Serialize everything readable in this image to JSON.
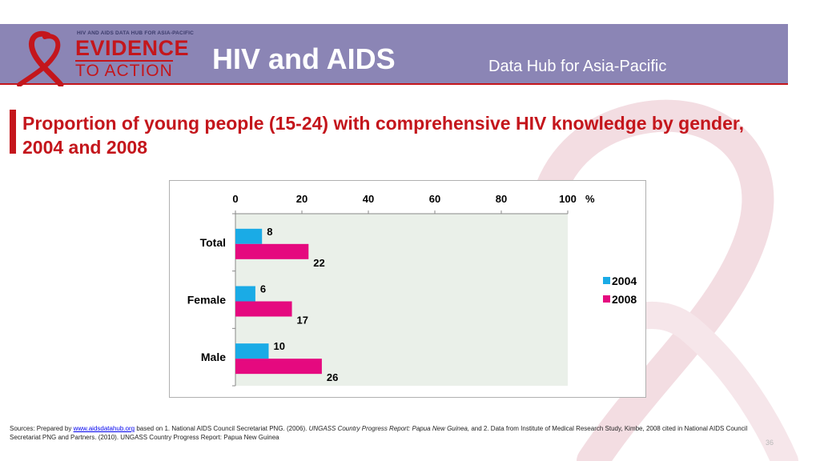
{
  "header": {
    "logo_top": "HIV AND AIDS DATA HUB FOR ASIA-PACIFIC",
    "logo_line1": "EVIDENCE",
    "logo_line2": "TO ACTION",
    "title": "HIV and AIDS",
    "subtitle": "Data Hub for Asia-Pacific"
  },
  "slide": {
    "title": "Proportion of young people (15-24) with comprehensive HIV knowledge by gender, 2004 and 2008"
  },
  "colors": {
    "header_bg": "#8b85b5",
    "accent_red": "#c4161c",
    "series_2004": "#1aabe6",
    "series_2008": "#e5097f",
    "plot_bg": "#eaf0e9"
  },
  "chart_data": {
    "type": "bar",
    "orientation": "horizontal",
    "categories": [
      "Total",
      "Female",
      "Male"
    ],
    "series": [
      {
        "name": "2004",
        "values": [
          8,
          6,
          10
        ]
      },
      {
        "name": "2008",
        "values": [
          22,
          17,
          26
        ]
      }
    ],
    "xlim": [
      0,
      100
    ],
    "x_ticks": [
      0,
      20,
      40,
      60,
      80,
      100
    ],
    "x_unit": "%",
    "axis_position": "top",
    "legend_position": "right",
    "grid": false
  },
  "source": {
    "prefix": "Sources: Prepared by ",
    "link": "www.aidsdatahub.org",
    "middle": "  based on 1. National AIDS Council Secretariat PNG. (2006). ",
    "italic": "UNGASS Country Progress Report: Papua New Guinea,",
    "rest": " and 2. Data from Institute of Medical Research Study, Kimbe, 2008 cited in National AIDS Council Secretariat PNG and Partners. (2010). UNGASS Country Progress Report: Papua New Guinea"
  },
  "page_number": "36"
}
